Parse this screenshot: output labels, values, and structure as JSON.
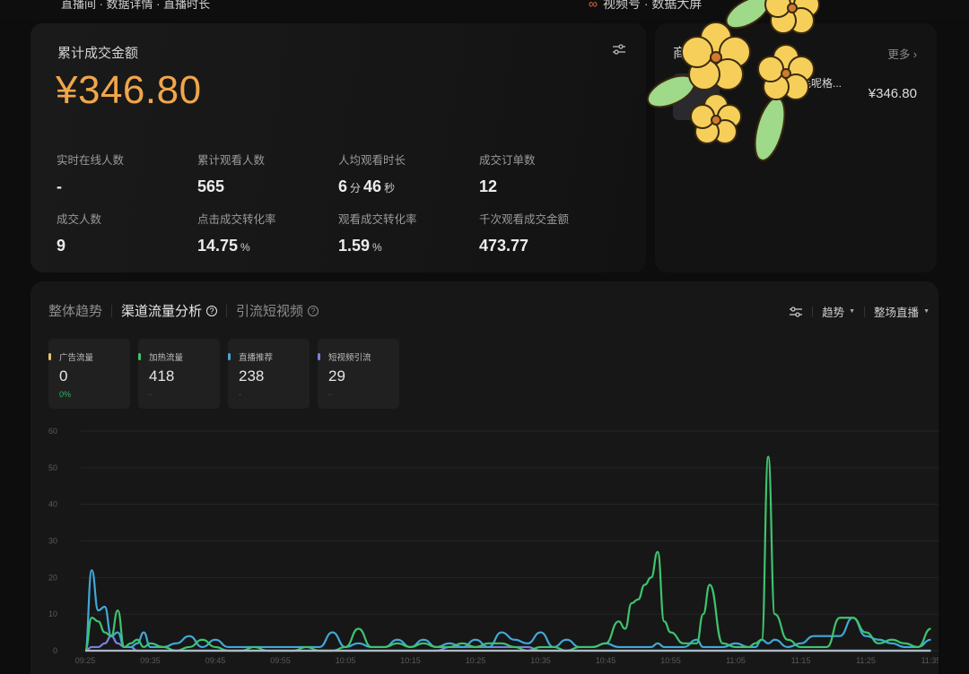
{
  "topbar": {
    "breadcrumb": "直播间 · 数据详情 · 直播时长",
    "brand_icon": "channels-logo-icon",
    "brand": "视频号 · 数据大屏"
  },
  "summary": {
    "title": "累计成交金额",
    "amount": "¥346.80",
    "filter_icon": "sliders-icon",
    "metrics": [
      {
        "label": "实时在线人数",
        "value": "-",
        "unit": ""
      },
      {
        "label": "累计观看人数",
        "value": "565",
        "unit": ""
      },
      {
        "label": "人均观看时长",
        "value_min": "6",
        "unit_min": "分",
        "value_sec": "46",
        "unit_sec": "秒"
      },
      {
        "label": "成交订单数",
        "value": "12",
        "unit": ""
      },
      {
        "label": "成交人数",
        "value": "9",
        "unit": ""
      },
      {
        "label": "点击成交转化率",
        "value": "14.75",
        "unit": "%"
      },
      {
        "label": "观看成交转化率",
        "value": "1.59",
        "unit": "%"
      },
      {
        "label": "千次观看成交金额",
        "value": "473.77",
        "unit": ""
      }
    ]
  },
  "products": {
    "title": "商品排行榜",
    "more": "更多 ›",
    "items": [
      {
        "name": "…毛呢格...",
        "price": "¥346.80"
      }
    ]
  },
  "trend": {
    "tabs": [
      {
        "label": "整体趋势",
        "help": false
      },
      {
        "label": "渠道流量分析",
        "help": true
      },
      {
        "label": "引流短视频",
        "help": true
      }
    ],
    "active_tab": 1,
    "controls": {
      "settings_icon": "sliders-icon",
      "mode": "趋势",
      "range": "整场直播"
    },
    "chips": [
      {
        "label": "广告流量",
        "value": "0",
        "sub": "0%",
        "color": "#e8c36a"
      },
      {
        "label": "加热流量",
        "value": "418",
        "sub": "-",
        "color": "#3ec46d"
      },
      {
        "label": "直播推荐",
        "value": "238",
        "sub": "-",
        "color": "#3fa9d9"
      },
      {
        "label": "短视频引流",
        "value": "29",
        "sub": "-",
        "color": "#7b7fe0"
      }
    ]
  },
  "chart_data": {
    "type": "line",
    "title": "渠道流量分析",
    "xlabel": "",
    "ylabel": "",
    "ylim": [
      0,
      60
    ],
    "yticks": [
      0,
      10,
      20,
      30,
      40,
      50,
      60
    ],
    "x_ticks": [
      "09:25",
      "09:35",
      "09:45",
      "09:55",
      "10:05",
      "10:15",
      "10:25",
      "10:35",
      "10:45",
      "10:55",
      "11:05",
      "11:15",
      "11:25",
      "11:35"
    ],
    "grid": true,
    "legend_position": "top-chips",
    "x": [
      "09:25",
      "09:26",
      "09:27",
      "09:28",
      "09:29",
      "09:30",
      "09:31",
      "09:32",
      "09:33",
      "09:34",
      "09:35",
      "09:37",
      "09:39",
      "09:41",
      "09:43",
      "09:45",
      "09:47",
      "09:49",
      "09:51",
      "09:53",
      "09:55",
      "09:57",
      "09:59",
      "10:01",
      "10:03",
      "10:05",
      "10:07",
      "10:09",
      "10:11",
      "10:13",
      "10:15",
      "10:17",
      "10:19",
      "10:21",
      "10:23",
      "10:25",
      "10:27",
      "10:29",
      "10:31",
      "10:33",
      "10:35",
      "10:37",
      "10:39",
      "10:41",
      "10:43",
      "10:45",
      "10:47",
      "10:48",
      "10:49",
      "10:50",
      "10:51",
      "10:52",
      "10:53",
      "10:54",
      "10:55",
      "10:57",
      "10:59",
      "11:00",
      "11:01",
      "11:03",
      "11:05",
      "11:07",
      "11:08",
      "11:09",
      "11:10",
      "11:11",
      "11:13",
      "11:15",
      "11:17",
      "11:19",
      "11:21",
      "11:23",
      "11:25",
      "11:27",
      "11:29",
      "11:31",
      "11:33",
      "11:35"
    ],
    "series": [
      {
        "name": "广告流量",
        "color": "#e8c36a",
        "values": [
          0,
          0,
          0,
          0,
          0,
          0,
          0,
          0,
          0,
          0,
          0,
          0,
          0,
          0,
          0,
          0,
          0,
          0,
          0,
          0,
          0,
          0,
          0,
          0,
          0,
          0,
          0,
          0,
          0,
          0,
          0,
          0,
          0,
          0,
          0,
          0,
          0,
          0,
          0,
          0,
          0,
          0,
          0,
          0,
          0,
          0,
          0,
          0,
          0,
          0,
          0,
          0,
          0,
          0,
          0,
          0,
          0,
          0,
          0,
          0,
          0,
          0,
          0,
          0,
          0,
          0,
          0,
          0,
          0,
          0,
          0,
          0,
          0,
          0,
          0,
          0,
          0,
          0
        ]
      },
      {
        "name": "加热流量",
        "color": "#3ec46d",
        "values": [
          0,
          9,
          8,
          5,
          4,
          11,
          1,
          2,
          3,
          1,
          2,
          1,
          0,
          1,
          3,
          1,
          0,
          0,
          1,
          0,
          0,
          0,
          1,
          0,
          0,
          1,
          6,
          1,
          1,
          2,
          1,
          2,
          1,
          1,
          2,
          1,
          2,
          2,
          1,
          0,
          1,
          1,
          0,
          1,
          1,
          2,
          8,
          6,
          13,
          14,
          18,
          20,
          27,
          8,
          5,
          2,
          2,
          10,
          18,
          2,
          1,
          1,
          2,
          3,
          53,
          10,
          3,
          1,
          1,
          1,
          9,
          9,
          5,
          2,
          3,
          2,
          1,
          6
        ]
      },
      {
        "name": "直播推荐",
        "color": "#3fa9d9",
        "values": [
          0,
          22,
          11,
          12,
          4,
          5,
          1,
          1,
          2,
          5,
          1,
          1,
          2,
          4,
          1,
          3,
          1,
          1,
          1,
          1,
          1,
          1,
          1,
          1,
          5,
          1,
          2,
          1,
          1,
          3,
          1,
          3,
          1,
          2,
          1,
          3,
          1,
          5,
          3,
          2,
          5,
          1,
          3,
          1,
          1,
          2,
          1,
          1,
          1,
          1,
          1,
          1,
          2,
          1,
          1,
          1,
          3,
          1,
          1,
          1,
          2,
          1,
          1,
          3,
          2,
          3,
          1,
          2,
          4,
          4,
          4,
          9,
          4,
          3,
          2,
          1,
          1,
          3
        ]
      },
      {
        "name": "短视频引流",
        "color": "#7b7fe0",
        "values": [
          0,
          1,
          1,
          2,
          4,
          2,
          1,
          1,
          0,
          0,
          0,
          0,
          0,
          0,
          0,
          0,
          0,
          0,
          0,
          0,
          0,
          0,
          0,
          0,
          0,
          0,
          0,
          0,
          0,
          0,
          0,
          0,
          0,
          1,
          1,
          1,
          1,
          1,
          1,
          1,
          0,
          0,
          0,
          0,
          0,
          0,
          0,
          0,
          0,
          0,
          0,
          0,
          0,
          0,
          0,
          0,
          0,
          0,
          0,
          0,
          0,
          0,
          0,
          0,
          0,
          0,
          0,
          0,
          0,
          0,
          0,
          0,
          0,
          0,
          0,
          0,
          0,
          0
        ]
      }
    ]
  }
}
